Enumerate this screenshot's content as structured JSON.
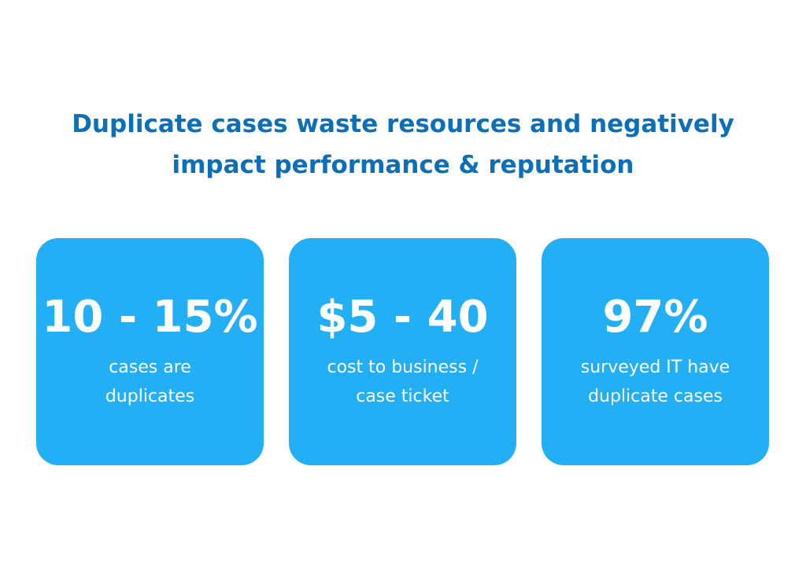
{
  "header": {
    "title_lines": [
      "Duplicate cases waste resources and negatively",
      "impact performance & reputation"
    ]
  },
  "cards": [
    {
      "stat": "10 - 15%",
      "caption_lines": [
        "cases are",
        "duplicates"
      ]
    },
    {
      "stat": "$5 - 40",
      "caption_lines": [
        "cost to business /",
        "case ticket"
      ]
    },
    {
      "stat": "97%",
      "caption_lines": [
        "surveyed IT have",
        "duplicate cases"
      ]
    }
  ]
}
